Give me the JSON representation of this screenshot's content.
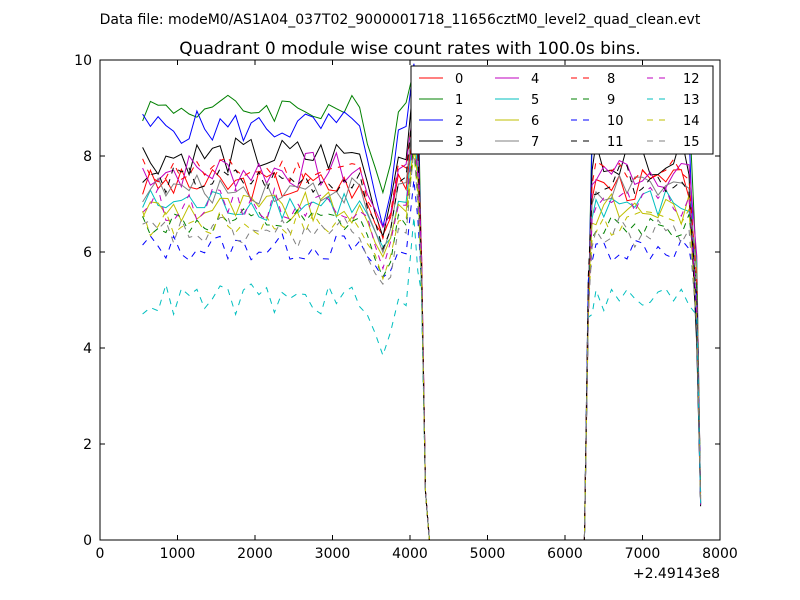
{
  "figure": {
    "suptitle": "Data file: modeM0/AS1A04_037T02_9000001718_11656cztM0_level2_quad_clean.evt"
  },
  "chart_data": {
    "type": "line",
    "title": "Quadrant 0 module wise count rates with 100.0s bins.",
    "xlabel": "",
    "ylabel": "",
    "xlim": [
      0,
      8000
    ],
    "ylim": [
      0,
      10
    ],
    "x_ticks": [
      "0",
      "1000",
      "2000",
      "3000",
      "4000",
      "5000",
      "6000",
      "7000",
      "8000"
    ],
    "y_ticks": [
      "0",
      "2",
      "4",
      "6",
      "8",
      "10"
    ],
    "x_tick_values": [
      0,
      1000,
      2000,
      3000,
      4000,
      5000,
      6000,
      7000,
      8000
    ],
    "y_tick_values": [
      0,
      2,
      4,
      6,
      8,
      10
    ],
    "offset_label": "+2.49143e8",
    "legend_position": "top-right",
    "series": [
      {
        "name": "0",
        "color": "#ff0000",
        "dash": "solid",
        "base": 7.4,
        "amp": 0.35,
        "dip": 6.4
      },
      {
        "name": "1",
        "color": "#008000",
        "dash": "solid",
        "base": 9.0,
        "amp": 0.3,
        "dip": 7.2,
        "peak": 9.8
      },
      {
        "name": "2",
        "color": "#0000ff",
        "dash": "solid",
        "base": 8.6,
        "amp": 0.35,
        "dip": 6.4
      },
      {
        "name": "3",
        "color": "#000000",
        "dash": "solid",
        "base": 8.0,
        "amp": 0.4,
        "dip": 6.4
      },
      {
        "name": "4",
        "color": "#bf00bf",
        "dash": "solid",
        "base": 7.7,
        "amp": 0.4,
        "dip": 6.5
      },
      {
        "name": "5",
        "color": "#00bfbf",
        "dash": "solid",
        "base": 7.0,
        "amp": 0.35,
        "dip": 6.0
      },
      {
        "name": "6",
        "color": "#bfbf00",
        "dash": "solid",
        "base": 6.9,
        "amp": 0.35,
        "dip": 6.0
      },
      {
        "name": "7",
        "color": "#808080",
        "dash": "solid",
        "base": 7.3,
        "amp": 0.3,
        "dip": 6.0
      },
      {
        "name": "8",
        "color": "#ff0000",
        "dash": "dashed",
        "base": 7.7,
        "amp": 0.3,
        "dip": 6.2
      },
      {
        "name": "9",
        "color": "#008000",
        "dash": "dashed",
        "base": 6.6,
        "amp": 0.3,
        "dip": 5.6
      },
      {
        "name": "10",
        "color": "#0000ff",
        "dash": "dashed",
        "base": 6.1,
        "amp": 0.3,
        "dip": 5.5
      },
      {
        "name": "11",
        "color": "#000000",
        "dash": "dashed",
        "base": 7.5,
        "amp": 0.3,
        "dip": 6.0
      },
      {
        "name": "12",
        "color": "#bf00bf",
        "dash": "dashed",
        "base": 7.0,
        "amp": 0.35,
        "dip": 5.8
      },
      {
        "name": "13",
        "color": "#00bfbf",
        "dash": "dashed",
        "base": 5.0,
        "amp": 0.35,
        "dip": 3.9
      },
      {
        "name": "14",
        "color": "#bfbf00",
        "dash": "dashed",
        "base": 6.6,
        "amp": 0.3,
        "dip": 5.4
      },
      {
        "name": "15",
        "color": "#808080",
        "dash": "dashed",
        "base": 6.4,
        "amp": 0.35,
        "dip": 5.2
      }
    ],
    "x_start": 550,
    "x_step": 100,
    "segment1_end": 3950,
    "dip_x": 3650,
    "drop_points": [
      [
        4100,
        null
      ],
      [
        4150,
        5.0
      ],
      [
        4200,
        1.0
      ],
      [
        4250,
        0.0
      ]
    ],
    "zero_range": [
      4250,
      6250
    ],
    "rise_points": [
      [
        6250,
        0.0
      ],
      [
        6300,
        4.5
      ],
      [
        6350,
        7.0
      ]
    ],
    "segment2_start": 6400,
    "segment2_end": 7650,
    "final_points": [
      [
        7700,
        4.0
      ],
      [
        7750,
        0.7
      ]
    ]
  }
}
